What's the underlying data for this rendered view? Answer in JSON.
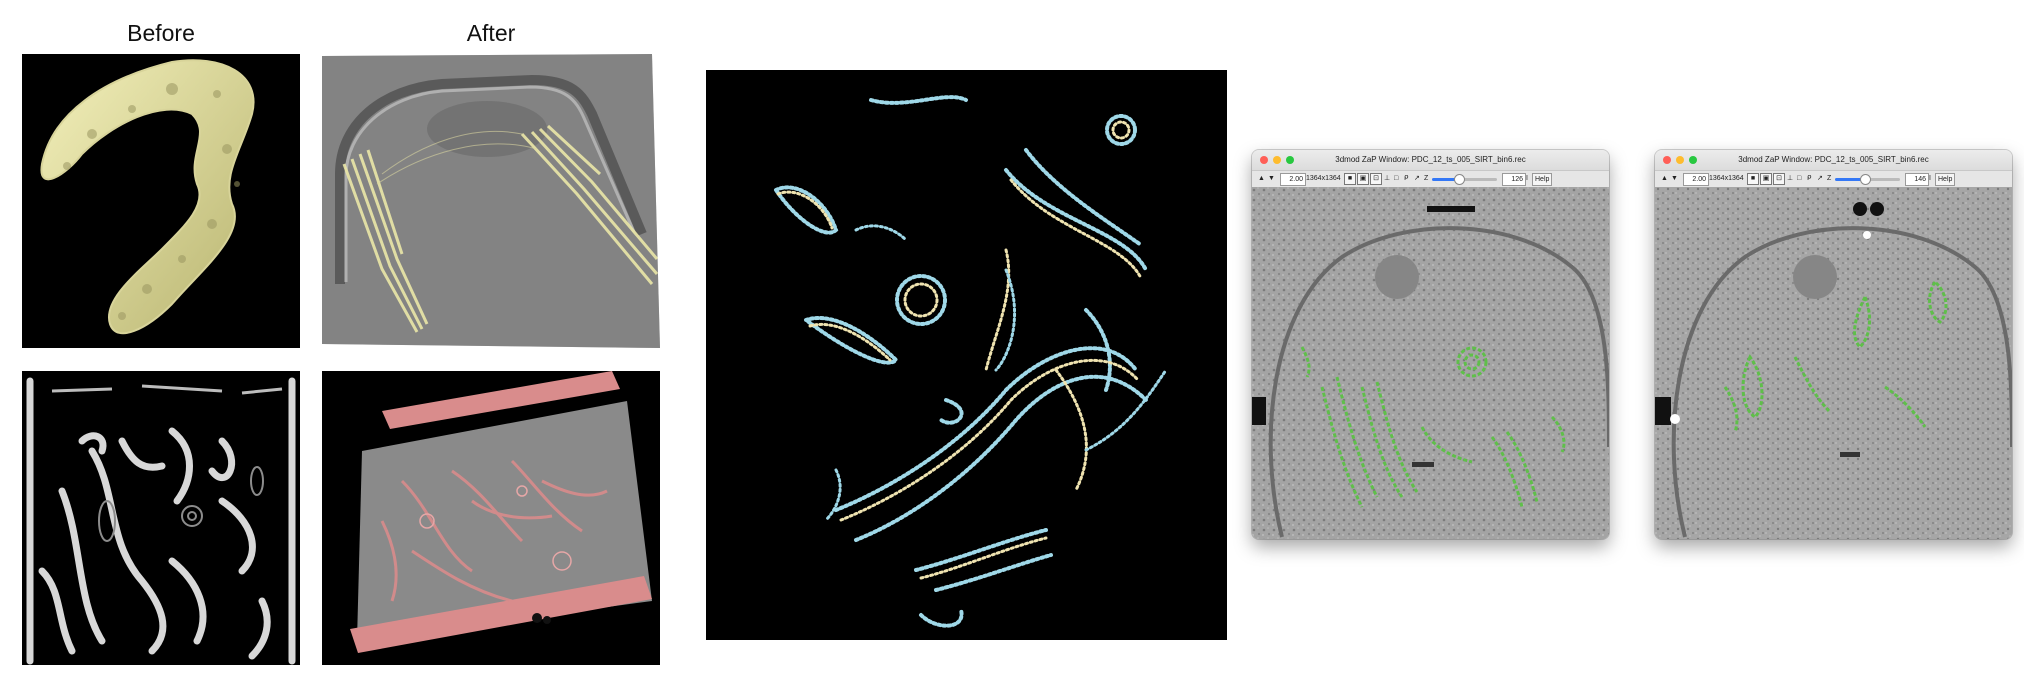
{
  "labels": {
    "before": "Before",
    "after": "After"
  },
  "zap_windows": [
    {
      "title": "3dmod ZaP Window: PDC_12_ts_005_SIRT_bin6.rec",
      "zoom": "2.00",
      "size": "1364x1364",
      "section": "126",
      "pipe": "I",
      "help_label": "Help",
      "slider_fraction": 0.5
    },
    {
      "title": "3dmod ZaP Window: PDC_12_ts_005_SIRT_bin6.rec",
      "zoom": "2.00",
      "size": "1364x1364",
      "section": "146",
      "pipe": "I",
      "help_label": "Help",
      "slider_fraction": 0.57
    }
  ],
  "colors": {
    "membrane_yellow": "#e8e4a0",
    "membrane_pink": "#d98c8c",
    "points_cyan": "#9fd8e8",
    "points_cream": "#efe3b0",
    "mark_green": "#5fbf4a",
    "mac_red": "#ff5f57",
    "mac_yellow": "#febc2e",
    "mac_green": "#28c840"
  }
}
